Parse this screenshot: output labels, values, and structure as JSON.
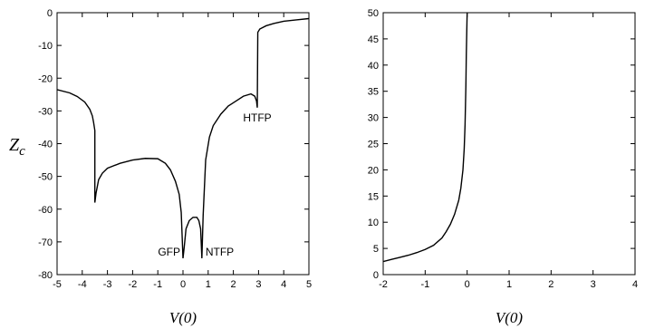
{
  "chart_data": [
    {
      "type": "line",
      "xlabel": "V(0)",
      "ylabel": "Z_c",
      "xlim": [
        -5,
        5
      ],
      "ylim": [
        -80,
        0
      ],
      "xticks": [
        -5,
        -4,
        -3,
        -2,
        -1,
        0,
        1,
        2,
        3,
        4,
        5
      ],
      "yticks": [
        0,
        -10,
        -20,
        -30,
        -40,
        -50,
        -60,
        -70,
        -80
      ],
      "grid": false,
      "annotations": [
        {
          "text": "GFP",
          "x": 0.0,
          "y": -75
        },
        {
          "text": "NTFP",
          "x": 0.75,
          "y": -75
        },
        {
          "text": "HTFP",
          "x": 2.95,
          "y": -29
        }
      ],
      "series": [
        {
          "x": [
            -5,
            -4.5,
            -4.2,
            -3.9,
            -3.7,
            -3.6,
            -3.55,
            -3.5,
            -3.5,
            -3.45,
            -3.35,
            -3.2,
            -3.0,
            -2.5,
            -2.0,
            -1.5,
            -1.0,
            -0.7,
            -0.5,
            -0.3,
            -0.15,
            -0.07,
            0.0,
            0.0,
            0.05,
            0.12,
            0.25,
            0.4,
            0.55,
            0.63,
            0.7,
            0.75,
            0.75,
            0.8,
            0.9,
            1.05,
            1.2,
            1.5,
            1.8,
            2.1,
            2.4,
            2.7,
            2.85,
            2.92,
            2.95,
            2.95,
            2.97,
            3.05,
            3.3,
            3.6,
            4.0,
            4.5,
            5.0
          ],
          "y": [
            -23.5,
            -24.5,
            -25.6,
            -27.3,
            -29.5,
            -31.5,
            -33.5,
            -36,
            -58,
            -55,
            -51,
            -49,
            -47.5,
            -46,
            -45,
            -44.5,
            -44.6,
            -46,
            -48,
            -51.5,
            -55.5,
            -61,
            -75,
            -75,
            -71.5,
            -66,
            -63.5,
            -62.5,
            -62.5,
            -63.5,
            -66,
            -75,
            -75,
            -62,
            -45,
            -38,
            -34.5,
            -31,
            -28.5,
            -27,
            -25.5,
            -24.8,
            -25.5,
            -27,
            -29,
            -29,
            -6,
            -5,
            -4,
            -3.3,
            -2.6,
            -2.2,
            -1.8
          ]
        }
      ]
    },
    {
      "type": "line",
      "xlabel": "V(0)",
      "xlim": [
        -2,
        4
      ],
      "ylim": [
        0,
        50
      ],
      "xticks": [
        -2,
        -1,
        0,
        1,
        2,
        3,
        4
      ],
      "yticks": [
        0,
        5,
        10,
        15,
        20,
        25,
        30,
        35,
        40,
        45,
        50
      ],
      "grid": false,
      "series": [
        {
          "x": [
            -2.0,
            -1.8,
            -1.6,
            -1.4,
            -1.2,
            -1.0,
            -0.8,
            -0.6,
            -0.5,
            -0.4,
            -0.3,
            -0.2,
            -0.15,
            -0.1,
            -0.07,
            -0.05,
            -0.03,
            -0.02,
            0.0
          ],
          "y": [
            2.5,
            2.9,
            3.3,
            3.7,
            4.2,
            4.8,
            5.6,
            7.0,
            8.2,
            9.6,
            11.5,
            14.2,
            16.5,
            20.0,
            24.0,
            28.5,
            36.0,
            42.0,
            50.0
          ]
        }
      ]
    }
  ]
}
